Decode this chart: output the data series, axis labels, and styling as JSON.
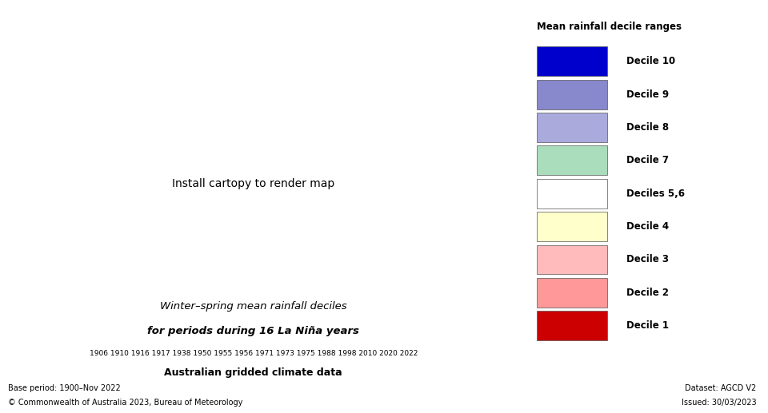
{
  "title_line1": "Winter–spring mean rainfall deciles",
  "title_line2": "for periods during 16 La Niña years",
  "title_years": "1906 1910 1916 1917 1938 1950 1955 1956 1971 1973 1975 1988 1998 2010 2020 2022",
  "title_line3": "Australian gridded climate data",
  "base_period": "Base period: 1900–Nov 2022",
  "copyright": "© Commonwealth of Australia 2023, Bureau of Meteorology",
  "dataset": "Dataset: AGCD V2",
  "issued": "Issued: 30/03/2023",
  "legend_title": "Mean rainfall decile ranges",
  "legend_entries": [
    {
      "label": "Decile 10",
      "color": "#0000cc"
    },
    {
      "label": "Decile 9",
      "color": "#8888cc"
    },
    {
      "label": "Decile 8",
      "color": "#aaaadd"
    },
    {
      "label": "Decile 7",
      "color": "#aaddbb"
    },
    {
      "label": "Deciles 5,6",
      "color": "#ffffff"
    },
    {
      "label": "Decile 4",
      "color": "#ffffcc"
    },
    {
      "label": "Decile 3",
      "color": "#ffbbbb"
    },
    {
      "label": "Decile 2",
      "color": "#ff9999"
    },
    {
      "label": "Decile 1",
      "color": "#cc0000"
    }
  ],
  "map_extent": [
    112,
    154,
    -44,
    -10
  ],
  "background_color": "#ffffff",
  "figsize": [
    9.6,
    5.17
  ],
  "dpi": 100,
  "decile_colors": {
    "10": "#0000cc",
    "9": "#8888cc",
    "8": "#aaaadd",
    "7": "#aaddbb",
    "6": "#ffffff",
    "5": "#ffffff",
    "4": "#ffffcc",
    "3": "#ffbbbb",
    "2": "#ff9999",
    "1": "#cc0000"
  }
}
